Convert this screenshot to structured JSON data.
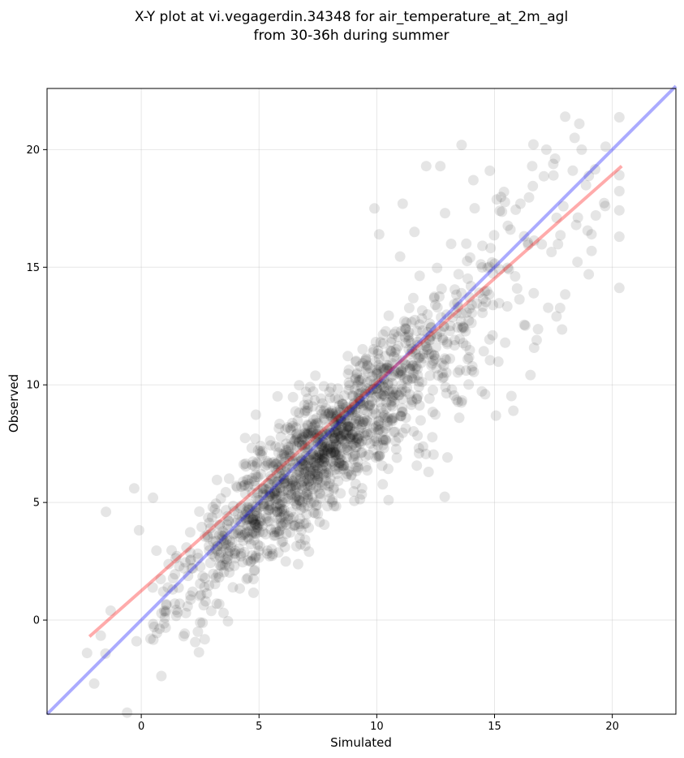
{
  "chart_data": {
    "type": "scatter",
    "title": "X-Y plot at vi.vegagerdin.34348 for air_temperature_at_2m_agl",
    "subtitle": "from 30-36h during summer",
    "xlabel": "Simulated",
    "ylabel": "Observed",
    "xlim": [
      -4.0,
      22.7
    ],
    "ylim": [
      -4.0,
      22.6
    ],
    "x_ticks": [
      0,
      5,
      10,
      15,
      20
    ],
    "y_ticks": [
      0,
      5,
      10,
      15,
      20
    ],
    "grid": true,
    "point_color": "#000000",
    "point_alpha": 0.1,
    "point_count": 1500,
    "identity_line": {
      "color": "#0000ff",
      "alpha": 0.33,
      "from": [
        -4.0,
        -4.0
      ],
      "to": [
        22.7,
        22.7
      ]
    },
    "regression_line": {
      "color": "#ff0000",
      "alpha": 0.33,
      "from": [
        -2.2,
        -0.7
      ],
      "to": [
        20.4,
        19.3
      ]
    },
    "notable_points": [
      {
        "x": 18.0,
        "y": 21.4
      },
      {
        "x": 18.6,
        "y": 21.1
      },
      {
        "x": 18.4,
        "y": 20.5
      },
      {
        "x": 13.6,
        "y": 20.2
      },
      {
        "x": 12.1,
        "y": 19.3
      },
      {
        "x": 12.7,
        "y": 19.3
      },
      {
        "x": 14.8,
        "y": 19.1
      },
      {
        "x": 16.6,
        "y": 19.3
      },
      {
        "x": 17.2,
        "y": 20.0
      },
      {
        "x": 18.7,
        "y": 20.0
      },
      {
        "x": 20.3,
        "y": 16.3
      },
      {
        "x": 19.7,
        "y": 17.6
      },
      {
        "x": 19.0,
        "y": 14.7
      },
      {
        "x": 15.8,
        "y": 8.9
      },
      {
        "x": 14.6,
        "y": 9.6
      },
      {
        "x": 13.5,
        "y": 8.6
      },
      {
        "x": 12.2,
        "y": 6.3
      },
      {
        "x": 10.5,
        "y": 5.1
      },
      {
        "x": 9.9,
        "y": 17.5
      },
      {
        "x": 11.1,
        "y": 17.7
      },
      {
        "x": 10.1,
        "y": 16.4
      },
      {
        "x": 6.1,
        "y": 3.1
      },
      {
        "x": -1.5,
        "y": 4.6
      },
      {
        "x": -0.3,
        "y": 5.6
      },
      {
        "x": 0.5,
        "y": 5.2
      },
      {
        "x": -2.0,
        "y": -2.7
      },
      {
        "x": -2.3,
        "y": -1.4
      },
      {
        "x": -0.2,
        "y": -0.9
      },
      {
        "x": 2.5,
        "y": -0.1
      },
      {
        "x": 3.2,
        "y": 0.7
      },
      {
        "x": 1.0,
        "y": 0.1
      },
      {
        "x": -1.3,
        "y": 0.4
      },
      {
        "x": 15.4,
        "y": 18.2
      },
      {
        "x": 16.1,
        "y": 17.7
      },
      {
        "x": 17.5,
        "y": 18.9
      },
      {
        "x": 13.8,
        "y": 16.0
      },
      {
        "x": 12.9,
        "y": 17.3
      },
      {
        "x": 11.6,
        "y": 16.5
      },
      {
        "x": 14.1,
        "y": 18.7
      },
      {
        "x": 19.3,
        "y": 17.2
      }
    ]
  }
}
